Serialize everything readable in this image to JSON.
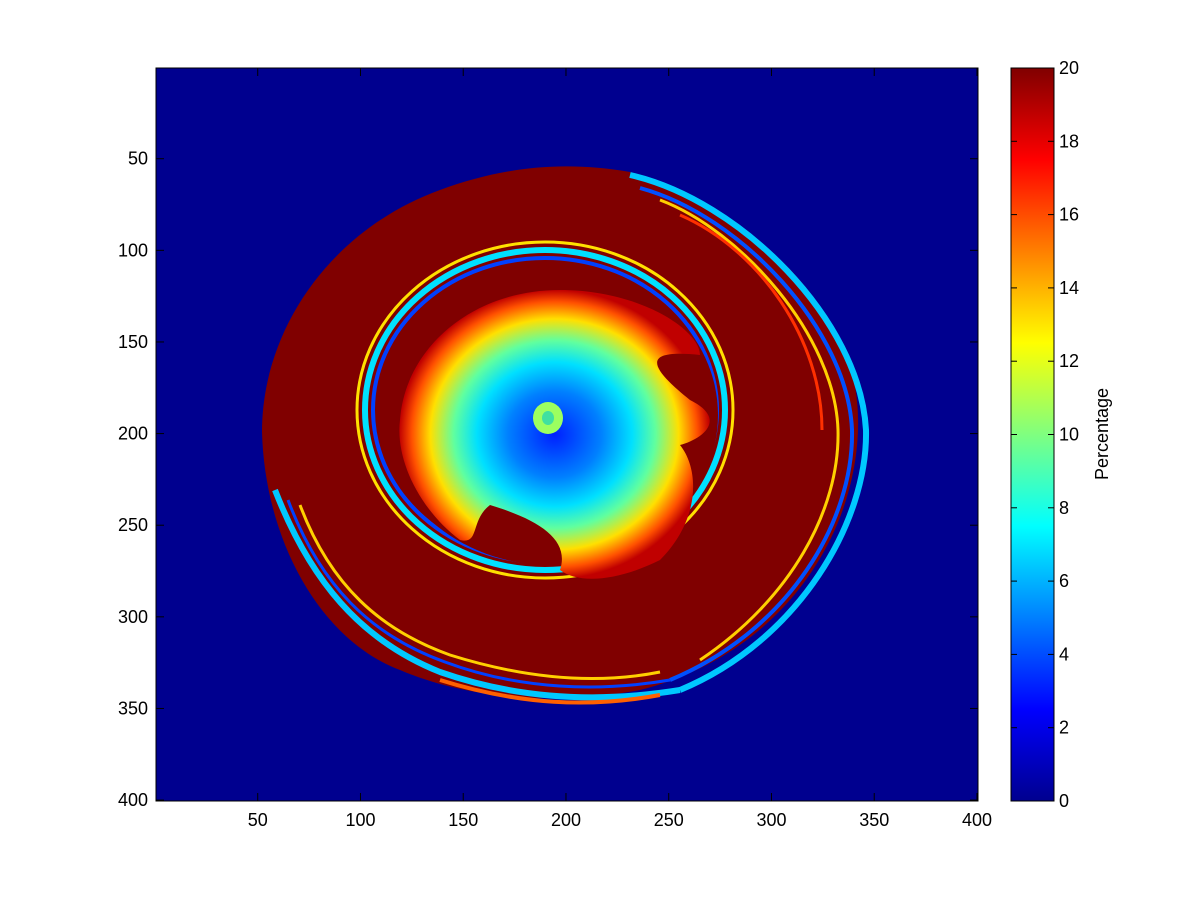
{
  "chart_data": {
    "type": "heatmap",
    "title": "",
    "xlabel": "",
    "ylabel": "",
    "xlim": [
      1,
      400
    ],
    "ylim": [
      1,
      400
    ],
    "y_direction": "reversed",
    "x_ticks": [
      50,
      100,
      150,
      200,
      250,
      300,
      350,
      400
    ],
    "x_tick_labels": [
      "50",
      "100",
      "150",
      "200",
      "250",
      "300",
      "350",
      "400"
    ],
    "y_ticks": [
      50,
      100,
      150,
      200,
      250,
      300,
      350,
      400
    ],
    "y_tick_labels": [
      "50",
      "100",
      "150",
      "200",
      "250",
      "300",
      "350",
      "400"
    ],
    "colormap": "jet",
    "background_value": 0,
    "colorbar": {
      "label": "Percentage",
      "limits": [
        0,
        20
      ],
      "ticks": [
        0,
        2,
        4,
        6,
        8,
        10,
        12,
        14,
        16,
        18,
        20
      ],
      "tick_labels": [
        "0",
        "2",
        "4",
        "6",
        "8",
        "10",
        "12",
        "14",
        "16",
        "18",
        "20"
      ]
    },
    "regions": [
      {
        "name": "outer saturated band",
        "center": [
          205,
          198
        ],
        "radius_x": 150,
        "radius_y": 145,
        "value": 20
      },
      {
        "name": "outer striped rings",
        "center": [
          208,
          205
        ],
        "radius_x": 140,
        "radius_y": 140,
        "value_range": [
          2,
          20
        ]
      },
      {
        "name": "inner ring interface",
        "center": [
          205,
          195
        ],
        "radius_x": 88,
        "radius_y": 88,
        "value_range": [
          2,
          20
        ]
      },
      {
        "name": "inner saturated ring",
        "center": [
          210,
          200
        ],
        "radius_x": 85,
        "radius_y": 75,
        "value": 20
      },
      {
        "name": "radial gradient core",
        "center": [
          215,
          205
        ],
        "radius_x": 65,
        "radius_y": 65,
        "center_value": 2,
        "edge_value": 20
      },
      {
        "name": "small spot",
        "center": [
          193,
          196
        ],
        "radius_x": 8,
        "radius_y": 8,
        "value": 10
      }
    ]
  }
}
